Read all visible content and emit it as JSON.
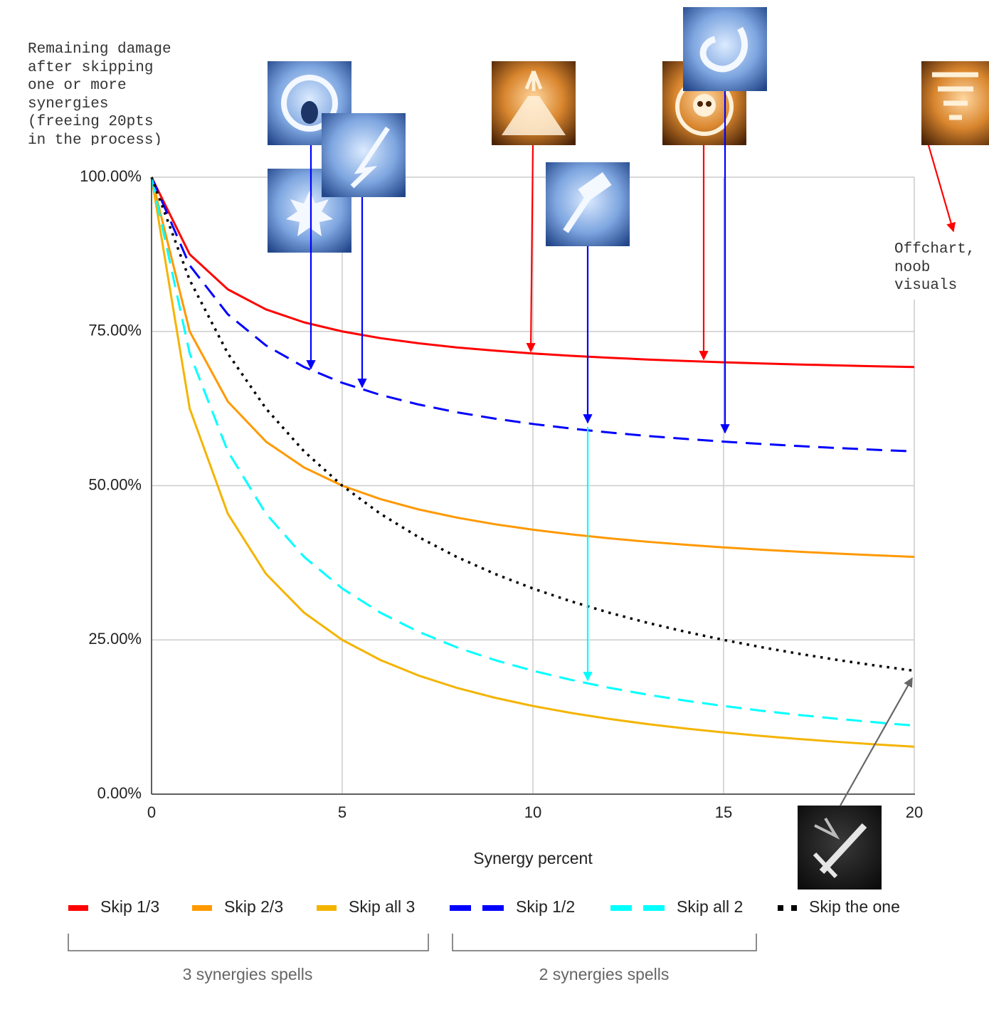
{
  "chart_data": {
    "type": "line",
    "x_label": "Synergy percent",
    "x": [
      0,
      1,
      2,
      3,
      4,
      5,
      6,
      7,
      8,
      9,
      10,
      11,
      12,
      13,
      14,
      15,
      16,
      17,
      18,
      19,
      20
    ],
    "xlim": [
      0,
      20
    ],
    "xticks": [
      0,
      5,
      10,
      15,
      20
    ],
    "ylim": [
      0,
      100
    ],
    "yticks": [
      {
        "value": 0,
        "label": "0.00%"
      },
      {
        "value": 25,
        "label": "25.00%"
      },
      {
        "value": 50,
        "label": "50.00%"
      },
      {
        "value": 75,
        "label": "75.00%"
      },
      {
        "value": 100,
        "label": "100.00%"
      }
    ],
    "grid": true,
    "legend": "bottom",
    "series": [
      {
        "name": "Skip 1/3",
        "color": "#ff0000",
        "dash": "solid",
        "values": [
          100,
          87.5,
          81.82,
          78.57,
          76.47,
          75,
          73.91,
          73.08,
          72.41,
          71.88,
          71.43,
          71.05,
          70.73,
          70.45,
          70.21,
          70,
          69.81,
          69.64,
          69.49,
          69.35,
          69.23
        ]
      },
      {
        "name": "Skip 2/3",
        "color": "#ff9900",
        "dash": "solid",
        "values": [
          100,
          75,
          63.64,
          57.14,
          52.94,
          50,
          47.83,
          46.15,
          44.83,
          43.75,
          42.86,
          42.11,
          41.46,
          40.91,
          40.43,
          40,
          39.62,
          39.29,
          38.98,
          38.71,
          38.46
        ]
      },
      {
        "name": "Skip all 3",
        "color": "#f4b400",
        "dash": "solid",
        "values": [
          100,
          62.5,
          45.45,
          35.71,
          29.41,
          25,
          21.74,
          19.23,
          17.24,
          15.63,
          14.29,
          13.16,
          12.2,
          11.36,
          10.64,
          10,
          9.43,
          8.93,
          8.47,
          8.06,
          7.69
        ]
      },
      {
        "name": "Skip 1/2",
        "color": "#0000ff",
        "dash": "dashed",
        "values": [
          100,
          85.71,
          77.78,
          72.73,
          69.23,
          66.67,
          64.71,
          63.16,
          61.9,
          60.87,
          60,
          59.26,
          58.62,
          58.06,
          57.58,
          57.14,
          56.76,
          56.41,
          56.1,
          55.81,
          55.56
        ]
      },
      {
        "name": "Skip all 2",
        "color": "#00ffff",
        "dash": "dashed",
        "values": [
          100,
          71.43,
          55.56,
          45.45,
          38.46,
          33.33,
          29.41,
          26.32,
          23.81,
          21.74,
          20,
          18.52,
          17.24,
          16.13,
          15.15,
          14.29,
          13.51,
          12.82,
          12.2,
          11.63,
          11.11
        ]
      },
      {
        "name": "Skip the one",
        "color": "#000000",
        "dash": "dotted",
        "values": [
          100,
          83.33,
          71.43,
          62.5,
          55.56,
          50,
          45.45,
          41.67,
          38.46,
          35.71,
          33.33,
          31.25,
          29.41,
          27.78,
          26.32,
          25,
          23.81,
          22.73,
          21.74,
          20.83,
          20
        ]
      }
    ],
    "annotations": [
      "Remaining damage after skipping one or more synergies (freeing 20pts in the process)",
      "Offchart, noob visuals",
      "3 synergies spells",
      "2 synergies spells"
    ]
  }
}
